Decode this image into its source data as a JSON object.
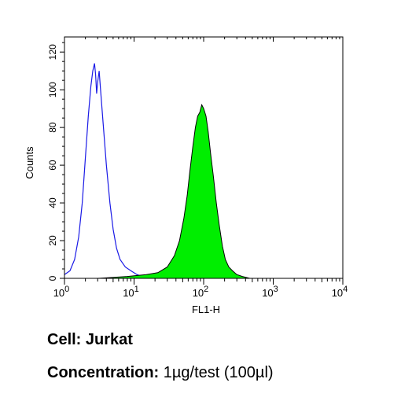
{
  "chart_data": {
    "type": "area",
    "xscale": "log",
    "xlim": [
      1,
      10000
    ],
    "ylim": [
      0,
      128
    ],
    "ylabel": "Counts",
    "xlabel": "FL1-H",
    "y_ticks": [
      0,
      20,
      40,
      60,
      80,
      100,
      120
    ],
    "x_ticks": [
      {
        "value": 1,
        "base": "10",
        "exp": "0"
      },
      {
        "value": 10,
        "base": "10",
        "exp": "1"
      },
      {
        "value": 100,
        "base": "10",
        "exp": "2"
      },
      {
        "value": 1000,
        "base": "10",
        "exp": "3"
      },
      {
        "value": 10000,
        "base": "10",
        "exp": "4"
      }
    ],
    "series": [
      {
        "style": "outline",
        "color": "#1a1ae6",
        "points": [
          [
            1.0,
            2
          ],
          [
            1.2,
            4
          ],
          [
            1.4,
            10
          ],
          [
            1.6,
            22
          ],
          [
            1.8,
            40
          ],
          [
            2.0,
            64
          ],
          [
            2.2,
            86
          ],
          [
            2.4,
            102
          ],
          [
            2.55,
            110
          ],
          [
            2.7,
            114
          ],
          [
            2.8,
            108
          ],
          [
            2.9,
            98
          ],
          [
            3.0,
            104
          ],
          [
            3.15,
            110
          ],
          [
            3.3,
            100
          ],
          [
            3.6,
            82
          ],
          [
            4.0,
            60
          ],
          [
            4.5,
            40
          ],
          [
            5.0,
            26
          ],
          [
            5.6,
            16
          ],
          [
            6.3,
            10
          ],
          [
            7.5,
            6
          ],
          [
            9.0,
            4
          ],
          [
            11,
            2
          ],
          [
            13,
            1
          ],
          [
            16,
            1
          ],
          [
            20,
            0
          ]
        ]
      },
      {
        "style": "filled",
        "color": "#00ee00",
        "stroke": "#000000",
        "points": [
          [
            1.0,
            0
          ],
          [
            3,
            0
          ],
          [
            8,
            1
          ],
          [
            15,
            2
          ],
          [
            22,
            3
          ],
          [
            30,
            6
          ],
          [
            38,
            12
          ],
          [
            45,
            20
          ],
          [
            52,
            32
          ],
          [
            58,
            44
          ],
          [
            64,
            58
          ],
          [
            70,
            70
          ],
          [
            76,
            80
          ],
          [
            82,
            86
          ],
          [
            88,
            88
          ],
          [
            94,
            92
          ],
          [
            100,
            90
          ],
          [
            108,
            86
          ],
          [
            116,
            78
          ],
          [
            126,
            66
          ],
          [
            138,
            54
          ],
          [
            152,
            40
          ],
          [
            168,
            28
          ],
          [
            186,
            17
          ],
          [
            205,
            10
          ],
          [
            230,
            6
          ],
          [
            260,
            4
          ],
          [
            300,
            2
          ],
          [
            360,
            1
          ],
          [
            460,
            0
          ],
          [
            700,
            0
          ],
          [
            1000,
            0
          ]
        ]
      }
    ]
  },
  "caption": {
    "cell_label": "Cell:",
    "cell_value": "Jurkat",
    "concentration_label": "Concentration:",
    "concentration_value": "1µg/test (100µl)"
  }
}
